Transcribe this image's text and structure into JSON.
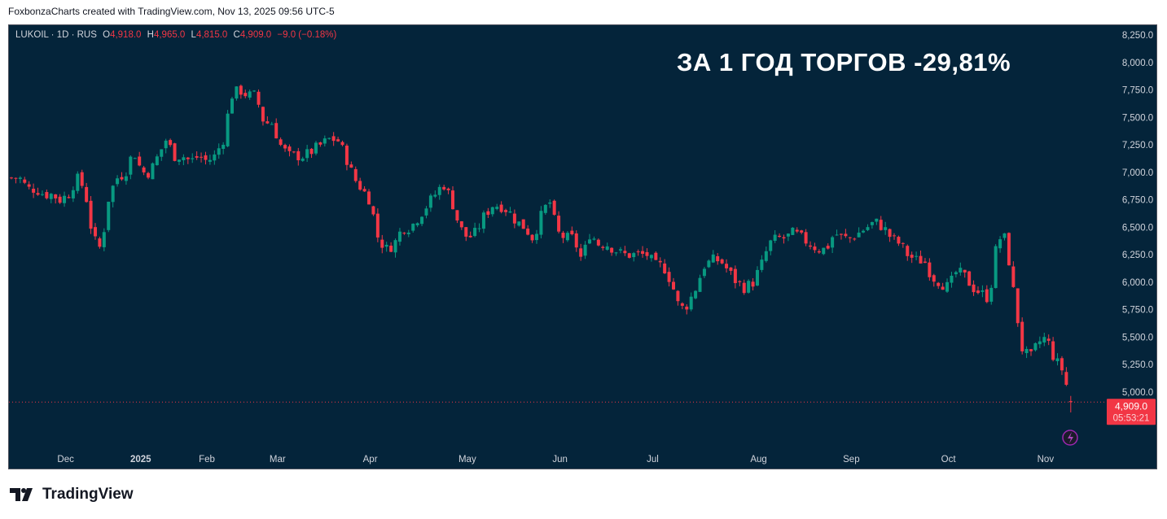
{
  "header": "FoxbonzaCharts created with TradingView.com, Nov 13, 2025 09:56 UTC-5",
  "legend": {
    "symbol": "LUKOIL · 1D · RUS",
    "o_label": "O",
    "o": "4,918.0",
    "h_label": "H",
    "h": "4,965.0",
    "l_label": "L",
    "l": "4,815.0",
    "c_label": "C",
    "c": "4,909.0",
    "change": "−9.0 (−0.18%)"
  },
  "annotation": "ЗА 1 ГОД ТОРГОВ -29,81%",
  "footer": {
    "brand": "TradingView"
  },
  "colors": {
    "up": "#089981",
    "down": "#f23645",
    "bg": "#04243a"
  },
  "chart_data": {
    "type": "candlestick",
    "title": "LUKOIL · 1D · RUS",
    "ylim": [
      4650,
      8350
    ],
    "y_ticks": [
      8250,
      8000,
      7750,
      7500,
      7250,
      7000,
      6750,
      6500,
      6250,
      6000,
      5750,
      5500,
      5250,
      5000
    ],
    "y_tick_labels": [
      "8,250.0",
      "8,000.0",
      "7,750.0",
      "7,500.0",
      "7,250.0",
      "7,000.0",
      "6,750.0",
      "6,500.0",
      "6,250.0",
      "6,000.0",
      "5,750.0",
      "5,500.0",
      "5,250.0",
      "5,000.0"
    ],
    "x_labels": [
      {
        "label": "Dec",
        "day": 11
      },
      {
        "label": "2025",
        "day": 28
      },
      {
        "label": "Feb",
        "day": 43
      },
      {
        "label": "Mar",
        "day": 59
      },
      {
        "label": "Apr",
        "day": 80
      },
      {
        "label": "May",
        "day": 102
      },
      {
        "label": "Jun",
        "day": 123
      },
      {
        "label": "Jul",
        "day": 144
      },
      {
        "label": "Aug",
        "day": 168
      },
      {
        "label": "Sep",
        "day": 189
      },
      {
        "label": "Oct",
        "day": 211
      },
      {
        "label": "Nov",
        "day": 233
      }
    ],
    "n_candles": 241,
    "close_path": [
      6950,
      6950,
      6850,
      6850,
      6800,
      6800,
      6750,
      6800,
      6950,
      6850,
      6400,
      6300,
      6800,
      6950,
      7000,
      7200,
      7000,
      7000,
      7150,
      7300,
      7150,
      7150,
      7100,
      7150,
      7100,
      7150,
      7300,
      7700,
      7750,
      7700,
      7700,
      7450,
      7450,
      7250,
      7150,
      7150,
      7150,
      7200,
      7250,
      7300,
      7300,
      7150,
      6950,
      6850,
      6750,
      6400,
      6300,
      6350,
      6500,
      6500,
      6600,
      6700,
      6800,
      6900,
      6750,
      6500,
      6400,
      6450,
      6600,
      6700,
      6700,
      6650,
      6550,
      6500,
      6400,
      6600,
      6750,
      6450,
      6400,
      6400,
      6200,
      6450,
      6350,
      6350,
      6300,
      6250,
      6250,
      6250,
      6250,
      6150,
      6150,
      6000,
      5750,
      5800,
      5950,
      6150,
      6200,
      6200,
      6100,
      6000,
      5950,
      6000,
      6150,
      6350,
      6400,
      6400,
      6450,
      6400,
      6350,
      6300,
      6300,
      6450,
      6400,
      6400,
      6450,
      6500,
      6550,
      6500,
      6400,
      6350,
      6250,
      6200,
      6200,
      6050,
      6000,
      5950,
      6100,
      6050,
      5950,
      5900,
      5850,
      6400,
      6400,
      5900,
      5400,
      5300,
      5450,
      5500,
      5300,
      5200,
      4909
    ],
    "last_candle": {
      "open": 4918,
      "high": 4965,
      "low": 4815,
      "close": 4909
    },
    "last_price_label": "4,909.0",
    "countdown": "05:53:21"
  }
}
